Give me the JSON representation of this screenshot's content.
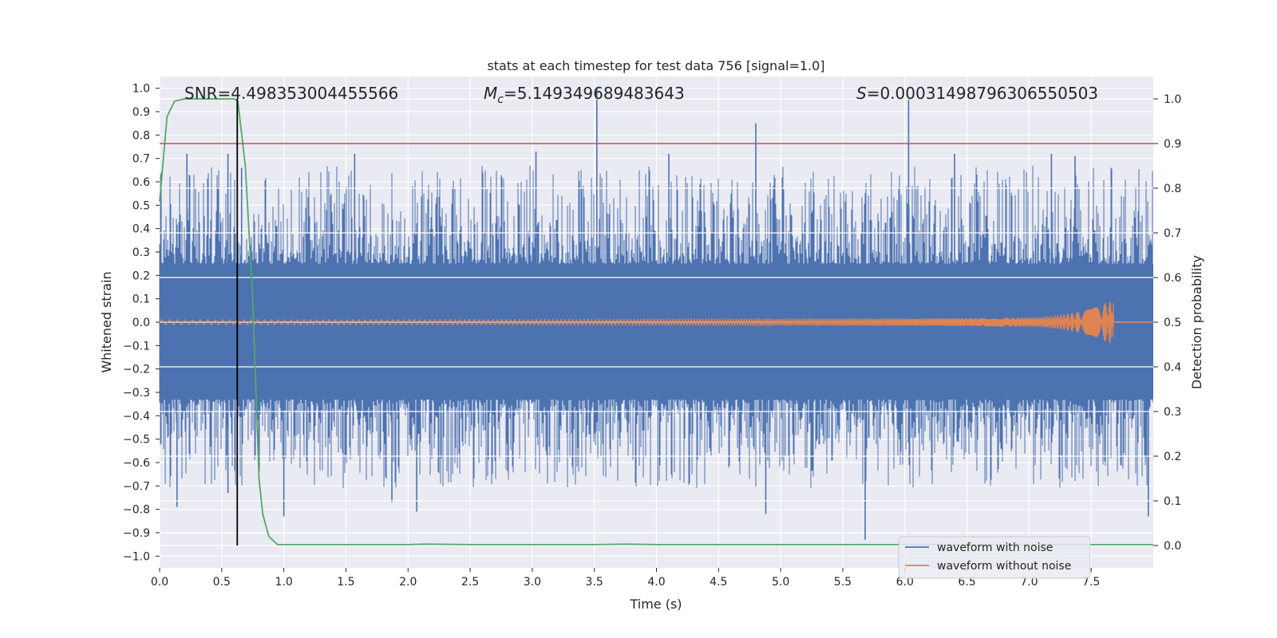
{
  "chart_data": {
    "type": "line",
    "title": "stats at each timestep for test data 756 [signal=1.0]",
    "xlabel": "Time (s)",
    "ylabel": "Whitened strain",
    "y2label": "Detection probability",
    "xlim": [
      0.0,
      8.0
    ],
    "ylim": [
      -1.05,
      1.05
    ],
    "y2lim": [
      -0.05,
      1.05
    ],
    "xticks": [
      0.0,
      0.5,
      1.0,
      1.5,
      2.0,
      2.5,
      3.0,
      3.5,
      4.0,
      4.5,
      5.0,
      5.5,
      6.0,
      6.5,
      7.0,
      7.5
    ],
    "xtick_labels": [
      "0.0",
      "0.5",
      "1.0",
      "1.5",
      "2.0",
      "2.5",
      "3.0",
      "3.5",
      "4.0",
      "4.5",
      "5.0",
      "5.5",
      "6.0",
      "6.5",
      "7.0",
      "7.5"
    ],
    "yticks": [
      1.0,
      0.9,
      0.8,
      0.7,
      0.6,
      0.5,
      0.4,
      0.3,
      0.2,
      0.1,
      0.0,
      -0.1,
      -0.2,
      -0.3,
      -0.4,
      -0.5,
      -0.6,
      -0.7,
      -0.8,
      -0.9,
      -1.0
    ],
    "ytick_labels": [
      "1.0",
      "0.9",
      "0.8",
      "0.7",
      "0.6",
      "0.5",
      "0.4",
      "0.3",
      "0.2",
      "0.1",
      "0.0",
      "−0.1",
      "−0.2",
      "−0.3",
      "−0.4",
      "−0.5",
      "−0.6",
      "−0.7",
      "−0.8",
      "−0.9",
      "−1.0"
    ],
    "y2ticks": [
      1.0,
      0.9,
      0.8,
      0.7,
      0.6,
      0.5,
      0.4,
      0.3,
      0.2,
      0.1,
      0.0
    ],
    "y2tick_labels": [
      "1.0",
      "0.9",
      "0.8",
      "0.7",
      "0.6",
      "0.5",
      "0.4",
      "0.3",
      "0.2",
      "0.1",
      "0.0"
    ],
    "grid": true,
    "legend_position": "bottom-right",
    "annotations": {
      "snr": "SNR=4.498353004455566",
      "mc_symbol": "M",
      "mc_subscript": "c",
      "mc_value": "=5.149349689483643",
      "s_symbol": "S",
      "s_value": "=0.00031498796306550503"
    },
    "threshold": {
      "axis": "y2",
      "value": 0.9,
      "color": "#c44e52"
    },
    "marker_time": 0.625,
    "series": [
      {
        "name": "waveform with noise",
        "axis": "y",
        "color": "#4c72b0",
        "render": "dense-noise",
        "core_band": [
          -0.33,
          0.25
        ],
        "spikes": [
          {
            "x": 0.22,
            "y": 0.72
          },
          {
            "x": 0.55,
            "y": 0.72
          },
          {
            "x": 0.55,
            "y": -0.73
          },
          {
            "x": 0.14,
            "y": -0.79
          },
          {
            "x": 1.0,
            "y": -0.83
          },
          {
            "x": 1.57,
            "y": 0.72
          },
          {
            "x": 1.87,
            "y": -0.77
          },
          {
            "x": 2.07,
            "y": -0.81
          },
          {
            "x": 3.03,
            "y": 0.73
          },
          {
            "x": 3.52,
            "y": 1.0
          },
          {
            "x": 4.1,
            "y": 0.72
          },
          {
            "x": 4.8,
            "y": 0.85
          },
          {
            "x": 4.88,
            "y": -0.82
          },
          {
            "x": 5.68,
            "y": -0.93
          },
          {
            "x": 6.03,
            "y": 0.95
          },
          {
            "x": 6.4,
            "y": 0.72
          },
          {
            "x": 7.18,
            "y": 0.72
          },
          {
            "x": 7.96,
            "y": -0.83
          },
          {
            "x": 7.37,
            "y": 0.71
          },
          {
            "x": 0.66,
            "y": 0.66
          }
        ]
      },
      {
        "name": "waveform without noise",
        "axis": "y",
        "color": "#dd8452",
        "render": "chirp",
        "start_amplitude": 0.01,
        "end_amplitude": 0.09,
        "merger_time": 7.68
      },
      {
        "axis": "y2",
        "color": "#55a868",
        "x": [
          0.0,
          0.06,
          0.12,
          0.2,
          0.3,
          0.4,
          0.5,
          0.6,
          0.63,
          0.69,
          0.75,
          0.8,
          0.83,
          0.88,
          0.95,
          1.1,
          1.5,
          2.0,
          2.15,
          2.5,
          3.0,
          3.5,
          3.75,
          4.0,
          5.0,
          6.0,
          7.0,
          7.5,
          8.0
        ],
        "y": [
          0.77,
          0.96,
          0.995,
          1.0,
          1.0,
          1.0,
          1.0,
          1.0,
          0.995,
          0.85,
          0.55,
          0.15,
          0.07,
          0.02,
          0.002,
          0.002,
          0.002,
          0.002,
          0.003,
          0.002,
          0.002,
          0.002,
          0.003,
          0.002,
          0.002,
          0.002,
          0.002,
          0.002,
          0.002
        ]
      }
    ]
  }
}
